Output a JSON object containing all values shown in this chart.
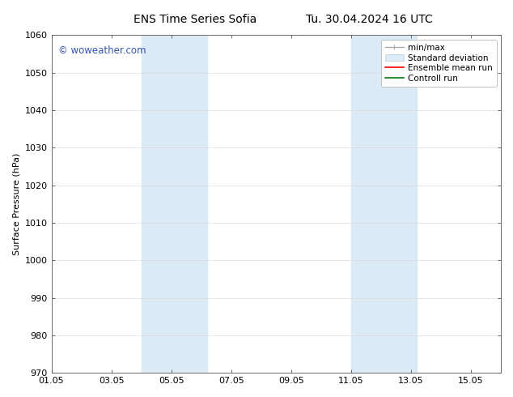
{
  "title_left": "ENS Time Series Sofia",
  "title_right": "Tu. 30.04.2024 16 UTC",
  "ylabel": "Surface Pressure (hPa)",
  "ylim": [
    970,
    1060
  ],
  "yticks": [
    970,
    980,
    990,
    1000,
    1010,
    1020,
    1030,
    1040,
    1050,
    1060
  ],
  "xlim": [
    0,
    15
  ],
  "xtick_labels": [
    "01.05",
    "03.05",
    "05.05",
    "07.05",
    "09.05",
    "11.05",
    "13.05",
    "15.05"
  ],
  "xtick_positions": [
    0,
    2,
    4,
    6,
    8,
    10,
    12,
    14
  ],
  "shaded_bands": [
    {
      "x_start": 3,
      "x_end": 5.2
    },
    {
      "x_start": 10,
      "x_end": 11
    },
    {
      "x_start": 11,
      "x_end": 12.2
    }
  ],
  "shaded_color": "#daeaf7",
  "watermark_text": "© woweather.com",
  "watermark_color": "#3355bb",
  "background_color": "#ffffff",
  "grid_color": "#cccccc",
  "legend_items": [
    {
      "label": "min/max"
    },
    {
      "label": "Standard deviation"
    },
    {
      "label": "Ensemble mean run"
    },
    {
      "label": "Controll run"
    }
  ],
  "font_family": "DejaVu Sans",
  "title_fontsize": 10,
  "tick_fontsize": 8,
  "legend_fontsize": 7.5
}
